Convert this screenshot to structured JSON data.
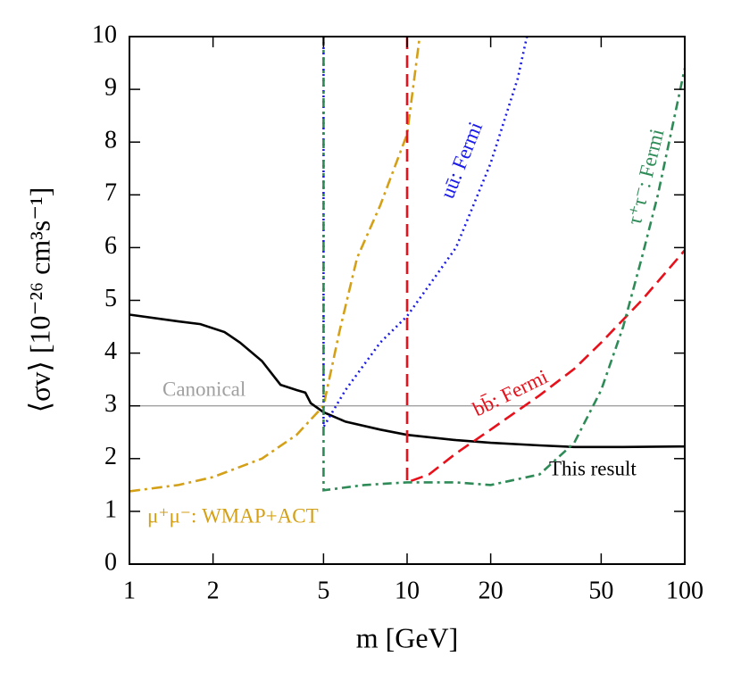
{
  "chart_data": {
    "type": "line",
    "xlabel": "m [GeV]",
    "ylabel": "⟨σv⟩ [10⁻²⁶ cm³s⁻¹]",
    "xscale": "log",
    "xlim": [
      1,
      100
    ],
    "xticks": [
      1,
      2,
      5,
      10,
      20,
      50,
      100
    ],
    "ylim": [
      0,
      10
    ],
    "yticks": [
      0,
      1,
      2,
      3,
      4,
      5,
      6,
      7,
      8,
      9,
      10
    ],
    "series": [
      {
        "name": "Canonical",
        "color": "#a0a0a0",
        "x": [
          1,
          100
        ],
        "values": [
          3,
          3
        ]
      },
      {
        "name": "This result",
        "color": "#000000",
        "x": [
          1,
          1.5,
          1.8,
          2.2,
          2.5,
          3,
          3.5,
          4,
          4.3,
          4.5,
          5,
          6,
          8,
          10,
          15,
          20,
          30,
          40,
          60,
          100
        ],
        "values": [
          4.73,
          4.6,
          4.55,
          4.4,
          4.2,
          3.85,
          3.4,
          3.3,
          3.25,
          3.05,
          2.88,
          2.7,
          2.55,
          2.45,
          2.35,
          2.3,
          2.25,
          2.22,
          2.22,
          2.23
        ]
      },
      {
        "name": "μ⁺μ⁻: WMAP+ACT",
        "color": "#d4a017",
        "x": [
          1,
          1.5,
          2,
          3,
          4,
          5,
          5.7,
          6.6,
          8,
          10,
          11.1
        ],
        "values": [
          1.38,
          1.5,
          1.65,
          2.0,
          2.45,
          3.0,
          4.4,
          5.8,
          6.8,
          8.15,
          10
        ]
      },
      {
        "name": "bb̄: Fermi",
        "color": "#e8101a",
        "x": [
          10,
          10,
          12,
          15,
          20,
          30,
          40,
          50,
          70,
          100
        ],
        "values": [
          10,
          1.55,
          1.7,
          2.1,
          2.55,
          3.2,
          3.7,
          4.2,
          5.0,
          5.95
        ]
      },
      {
        "name": "uū: Fermi",
        "color": "#1a1aeb",
        "x": [
          5,
          5,
          6,
          8,
          10,
          15,
          20,
          25,
          27
        ],
        "values": [
          10,
          2.6,
          3.3,
          4.2,
          4.7,
          6.0,
          7.6,
          9.2,
          10
        ]
      },
      {
        "name": "τ⁺τ⁻: Fermi",
        "color": "#2e8b57",
        "x": [
          5,
          5,
          7,
          10,
          15,
          20,
          30,
          40,
          50,
          60,
          70,
          80,
          100
        ],
        "values": [
          10,
          1.4,
          1.5,
          1.55,
          1.55,
          1.5,
          1.7,
          2.3,
          3.3,
          4.5,
          5.8,
          7.0,
          9.4
        ]
      }
    ]
  }
}
